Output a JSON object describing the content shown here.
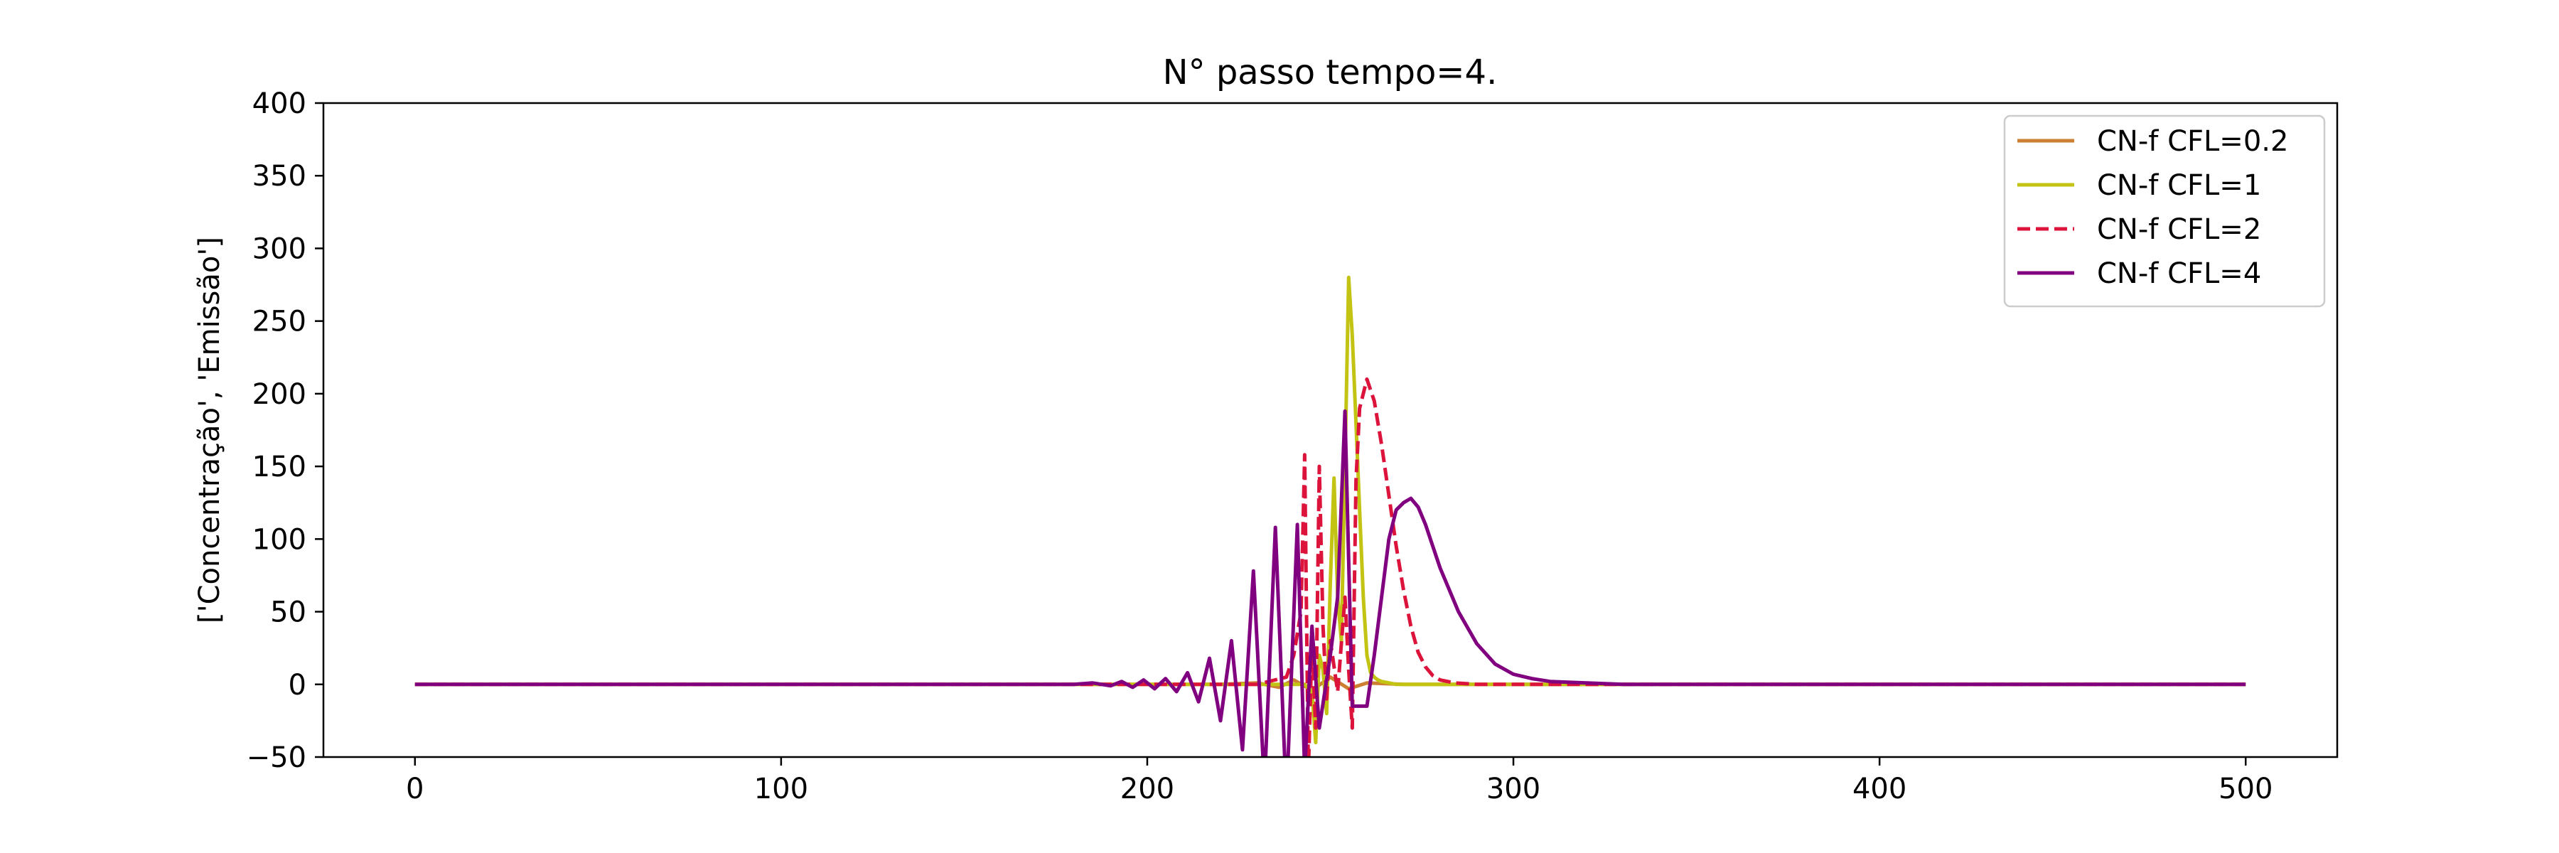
{
  "chart_data": {
    "type": "line",
    "title": "N° passo tempo=4.",
    "xlabel": "",
    "ylabel": "['Concentração', 'Emissão']",
    "xlim": [
      -25,
      525
    ],
    "ylim": [
      -50,
      400
    ],
    "xticks": [
      0,
      100,
      200,
      300,
      400,
      500
    ],
    "yticks": [
      -50,
      0,
      50,
      100,
      150,
      200,
      250,
      300,
      350,
      400
    ],
    "legend_position": "top-right",
    "series": [
      {
        "name": "CN-f CFL=0.2",
        "color": "#cd7f32",
        "dash": "solid",
        "x": [
          0,
          100,
          200,
          220,
          230,
          236,
          240,
          245,
          250,
          255,
          260,
          270,
          280,
          300,
          400,
          500
        ],
        "y": [
          0,
          0,
          0,
          0,
          1,
          -2,
          3,
          -4,
          5,
          -3,
          1,
          0,
          0,
          0,
          0,
          0
        ]
      },
      {
        "name": "CN-f CFL=1",
        "color": "#c3c314",
        "dash": "solid",
        "x": [
          0,
          100,
          200,
          230,
          240,
          243,
          245,
          246,
          247,
          248,
          249,
          250,
          251,
          252,
          253,
          254,
          255,
          256,
          257,
          258,
          259,
          260,
          261,
          262,
          263,
          264,
          266,
          268,
          270,
          280,
          300,
          400,
          500
        ],
        "y": [
          0,
          0,
          0,
          0,
          0,
          0,
          -5,
          -40,
          20,
          10,
          -20,
          70,
          142,
          60,
          30,
          150,
          280,
          240,
          180,
          120,
          60,
          20,
          8,
          5,
          3,
          2,
          1,
          0,
          0,
          0,
          0,
          0,
          0
        ],
        "y_clip_note": ""
      },
      {
        "name": "CN-f CFL=2",
        "color": "#dc143c",
        "dash": "dashed",
        "x": [
          0,
          100,
          200,
          230,
          238,
          240,
          242,
          243,
          244,
          245,
          246,
          247,
          248,
          249,
          250,
          252,
          254,
          255,
          256,
          257,
          258,
          260,
          262,
          264,
          266,
          268,
          270,
          272,
          274,
          276,
          278,
          280,
          284,
          290,
          300,
          320,
          400,
          500
        ],
        "y": [
          0,
          0,
          0,
          0,
          5,
          20,
          50,
          158,
          -60,
          30,
          -30,
          150,
          40,
          -10,
          30,
          -5,
          60,
          10,
          -30,
          140,
          190,
          210,
          195,
          165,
          130,
          95,
          65,
          40,
          22,
          12,
          6,
          3,
          1,
          0,
          0,
          0,
          0,
          0
        ]
      },
      {
        "name": "CN-f CFL=4",
        "color": "#800080",
        "dash": "solid",
        "x": [
          0,
          100,
          180,
          185,
          190,
          193,
          196,
          199,
          202,
          205,
          208,
          211,
          214,
          217,
          220,
          223,
          226,
          229,
          232,
          235,
          238,
          241,
          243,
          245,
          247,
          250,
          252,
          254,
          256,
          258,
          260,
          262,
          264,
          266,
          268,
          270,
          272,
          274,
          276,
          278,
          280,
          285,
          290,
          295,
          300,
          305,
          310,
          320,
          330,
          400,
          500
        ],
        "y": [
          0,
          0,
          0,
          1,
          -1,
          2,
          -2,
          3,
          -3,
          4,
          -5,
          8,
          -12,
          18,
          -25,
          30,
          -45,
          78,
          -70,
          108,
          -80,
          110,
          -60,
          40,
          -30,
          20,
          60,
          188,
          -15,
          -15,
          -15,
          20,
          60,
          100,
          120,
          125,
          128,
          122,
          110,
          95,
          80,
          50,
          28,
          14,
          7,
          4,
          2,
          1,
          0,
          0,
          0
        ]
      }
    ]
  }
}
